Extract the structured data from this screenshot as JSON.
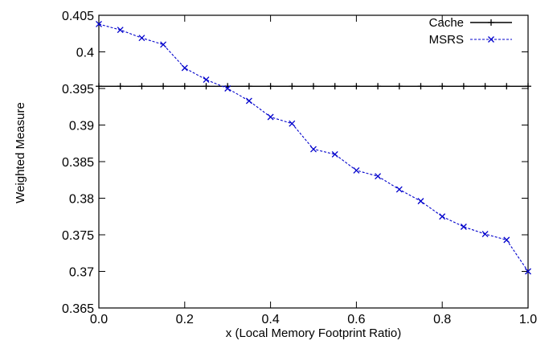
{
  "chart_data": {
    "type": "line",
    "title": "",
    "xlabel": "x (Local Memory Footprint Ratio)",
    "ylabel": "Weighted Measure",
    "xlim": [
      0.0,
      1.0
    ],
    "ylim": [
      0.365,
      0.405
    ],
    "xticks": [
      0.0,
      0.2,
      0.4,
      0.6,
      0.8,
      1.0
    ],
    "xtick_labels": [
      "0.0",
      "0.2",
      "0.4",
      "0.6",
      "0.8",
      "1.0"
    ],
    "yticks": [
      0.365,
      0.37,
      0.375,
      0.38,
      0.385,
      0.39,
      0.395,
      0.4,
      0.405
    ],
    "ytick_labels": [
      "0.365",
      "0.37",
      "0.375",
      "0.38",
      "0.385",
      "0.39",
      "0.395",
      "0.4",
      "0.405"
    ],
    "grid": false,
    "legend": "top-right",
    "series": [
      {
        "name": "Cache",
        "color": "#000000",
        "line_style": "solid",
        "marker": "plus",
        "x": [
          0.0,
          0.05,
          0.1,
          0.15,
          0.2,
          0.25,
          0.3,
          0.35,
          0.4,
          0.45,
          0.5,
          0.55,
          0.6,
          0.65,
          0.7,
          0.75,
          0.8,
          0.85,
          0.9,
          0.95,
          1.0
        ],
        "y": [
          0.3953,
          0.3953,
          0.3953,
          0.3953,
          0.3953,
          0.3953,
          0.3953,
          0.3953,
          0.3953,
          0.3953,
          0.3953,
          0.3953,
          0.3953,
          0.3953,
          0.3953,
          0.3953,
          0.3953,
          0.3953,
          0.3953,
          0.3953,
          0.3953
        ]
      },
      {
        "name": "MSRS",
        "color": "#0000cc",
        "line_style": "dashed",
        "marker": "cross",
        "x": [
          0.0,
          0.05,
          0.1,
          0.15,
          0.2,
          0.25,
          0.3,
          0.35,
          0.4,
          0.45,
          0.5,
          0.55,
          0.6,
          0.65,
          0.7,
          0.75,
          0.8,
          0.85,
          0.9,
          0.95,
          1.0
        ],
        "y": [
          0.4038,
          0.403,
          0.4019,
          0.401,
          0.3978,
          0.3962,
          0.395,
          0.3933,
          0.3911,
          0.3902,
          0.3867,
          0.386,
          0.3838,
          0.383,
          0.3812,
          0.3796,
          0.3775,
          0.3761,
          0.3751,
          0.3743,
          0.37
        ]
      }
    ]
  }
}
